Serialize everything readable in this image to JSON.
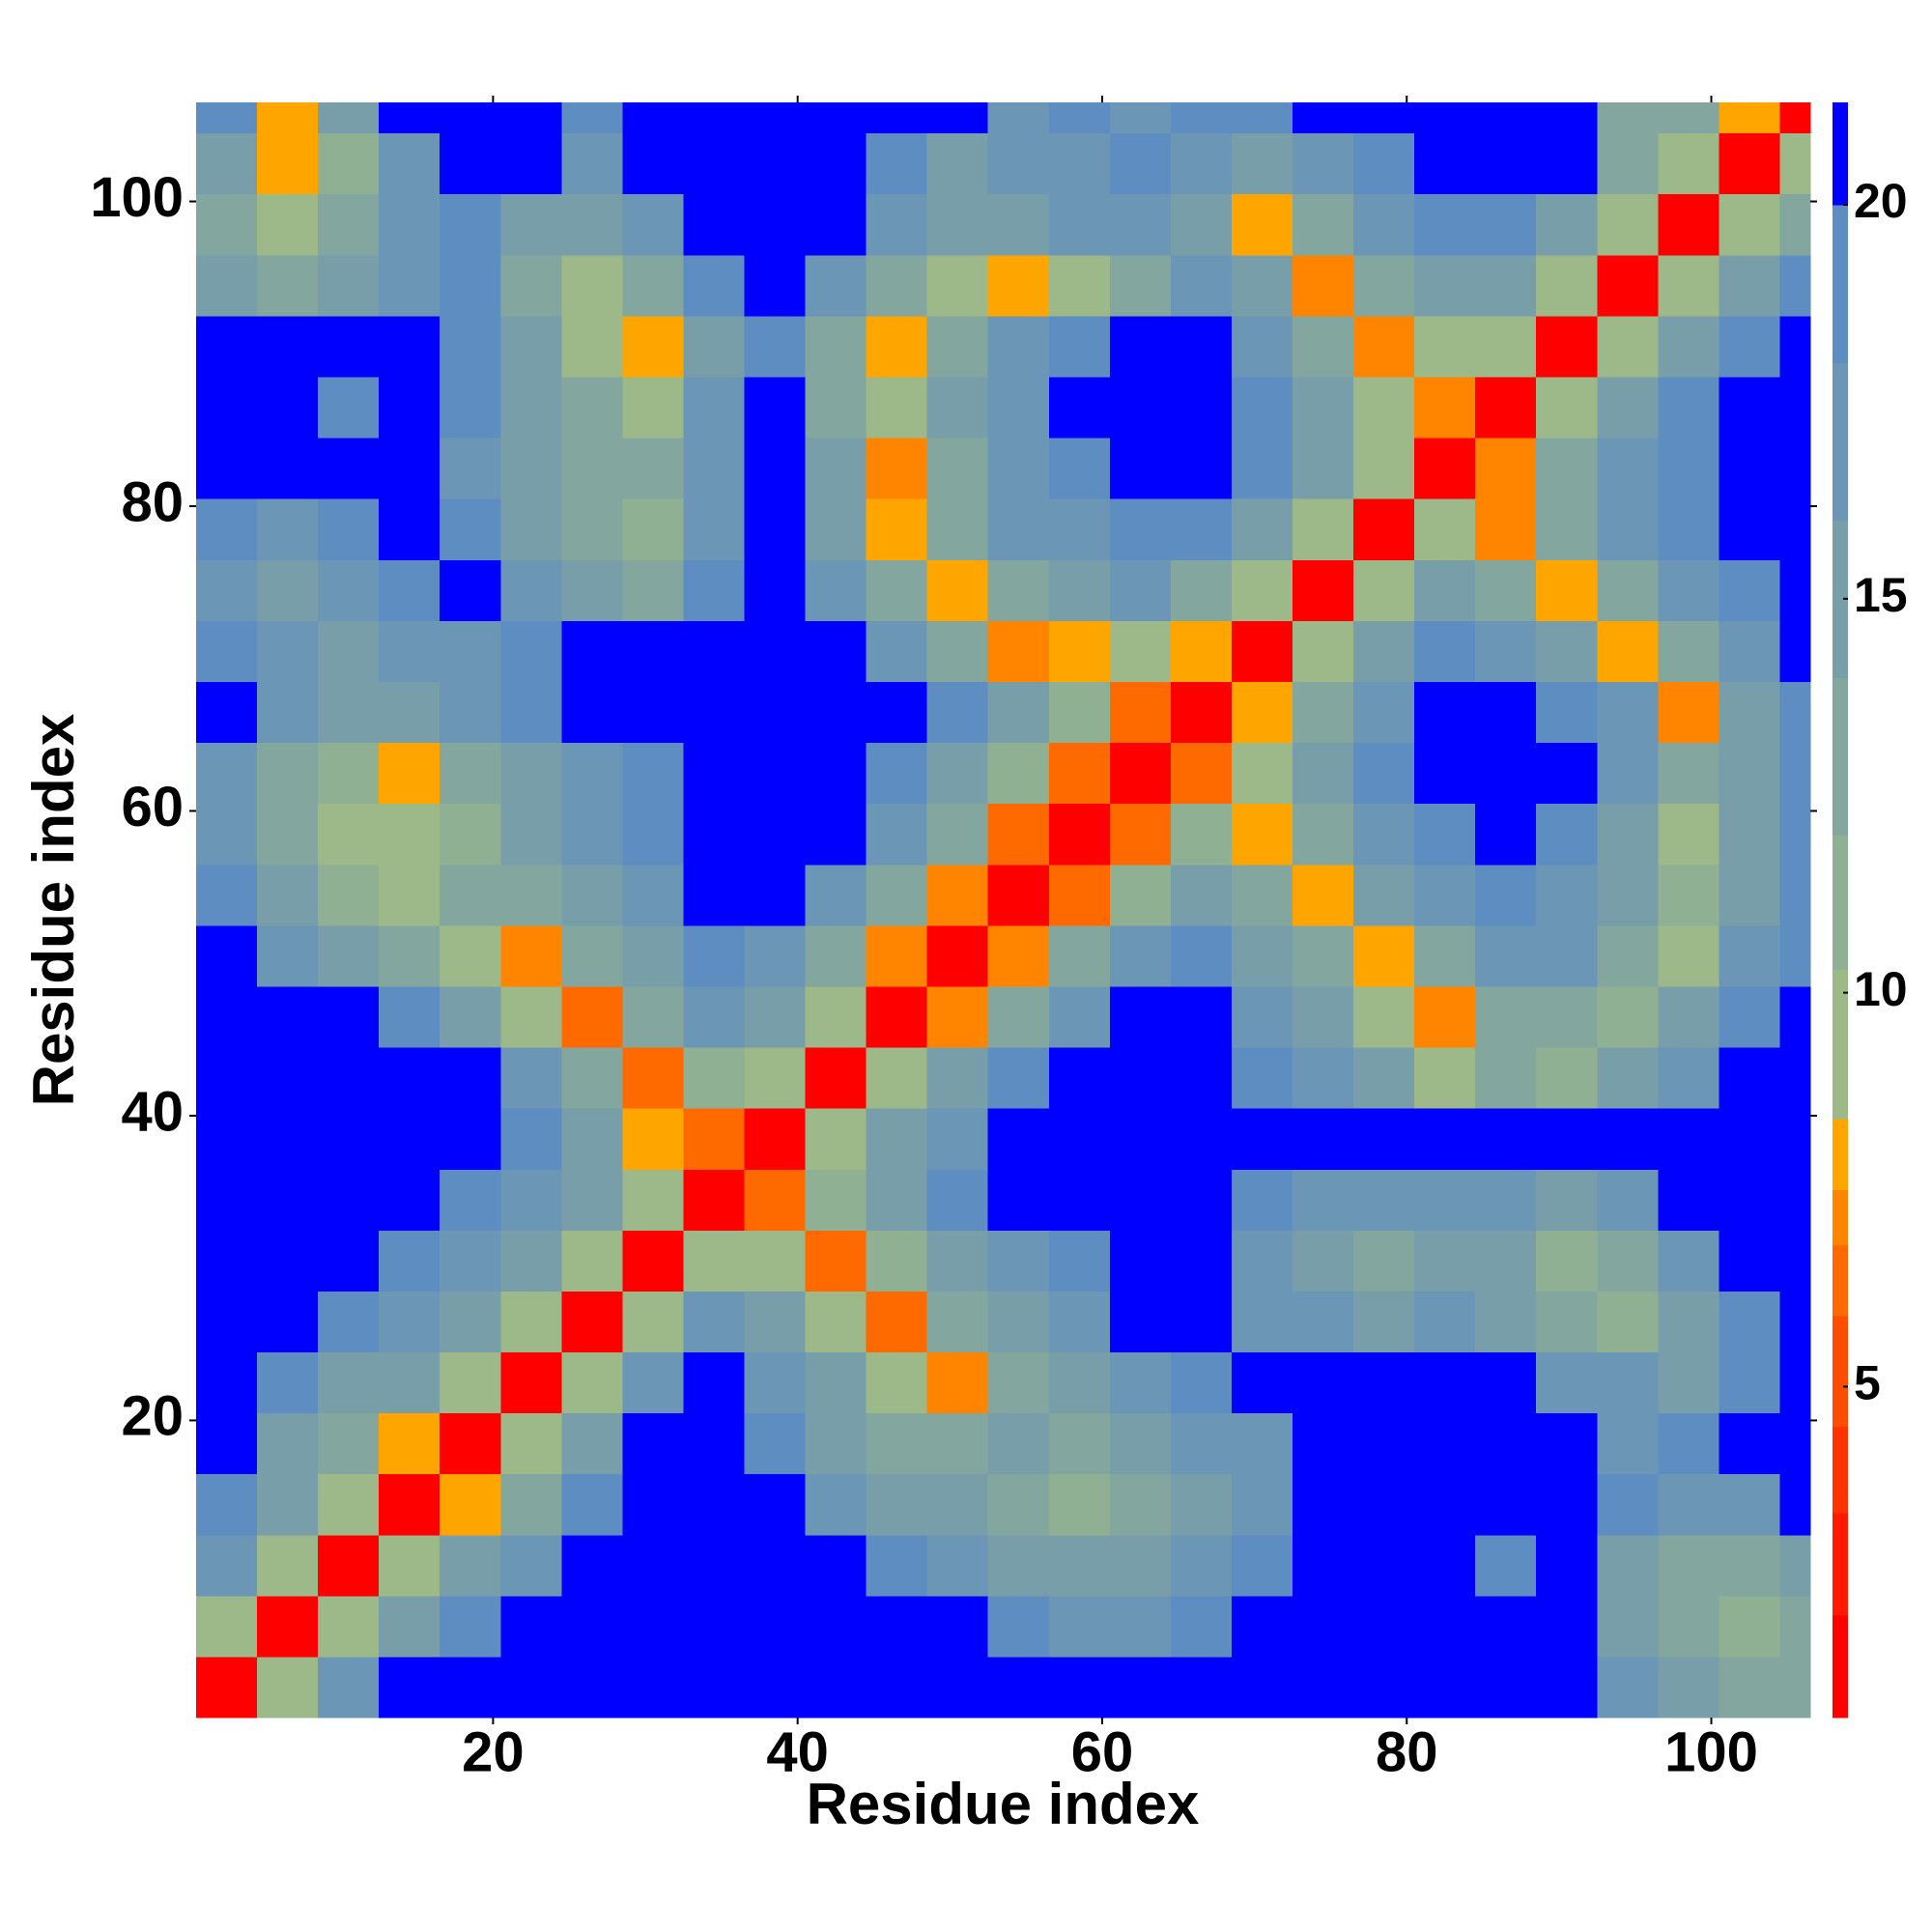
{
  "chart_data": {
    "type": "heatmap",
    "xlabel": "Residue index",
    "ylabel": "Residue index",
    "xlim": [
      0.5,
      106.5
    ],
    "ylim": [
      0.5,
      106.5
    ],
    "xticks": [
      20,
      40,
      60,
      80,
      100
    ],
    "yticks": [
      20,
      40,
      60,
      80,
      100
    ],
    "xbins": [
      0.5,
      4.5,
      8.5,
      12.5,
      16.5,
      20.5,
      24.5,
      28.5,
      32.5,
      36.5,
      40.5,
      44.5,
      48.5,
      52.5,
      56.5,
      60.5,
      64.5,
      68.5,
      72.5,
      76.5,
      80.5,
      84.5,
      88.5,
      92.5,
      96.5,
      100.5,
      104.5,
      106.5
    ],
    "ybins": [
      0.5,
      4.5,
      8.5,
      12.5,
      16.5,
      20.5,
      24.5,
      28.5,
      32.5,
      36.5,
      40.5,
      44.5,
      48.5,
      52.5,
      56.5,
      60.5,
      64.5,
      68.5,
      72.5,
      76.5,
      80.5,
      84.5,
      88.5,
      92.5,
      96.5,
      100.5,
      104.5,
      106.5
    ],
    "z": [
      [
        2,
        10,
        16,
        21,
        21,
        21,
        21,
        21,
        21,
        21,
        21,
        21,
        21,
        21,
        21,
        21,
        21,
        21,
        21,
        21,
        21,
        21,
        21,
        17,
        14,
        12,
        12
      ],
      [
        10,
        2,
        10,
        15,
        18,
        21,
        21,
        21,
        21,
        21,
        21,
        21,
        21,
        18,
        17,
        17,
        18,
        21,
        21,
        21,
        21,
        21,
        21,
        14,
        12,
        11,
        12
      ],
      [
        16,
        10,
        2,
        9,
        14,
        17,
        21,
        21,
        21,
        21,
        21,
        18,
        16,
        15,
        14,
        15,
        16,
        18,
        21,
        21,
        21,
        18,
        21,
        15,
        13,
        12,
        14
      ],
      [
        19,
        15,
        9,
        2,
        8,
        13,
        18,
        21,
        21,
        21,
        16,
        15,
        14,
        12,
        11,
        12,
        15,
        17,
        21,
        21,
        21,
        21,
        21,
        18,
        17,
        17,
        21
      ],
      [
        21,
        14,
        13,
        8,
        2,
        9,
        15,
        21,
        21,
        18,
        15,
        12,
        13,
        14,
        13,
        15,
        16,
        17,
        21,
        21,
        21,
        21,
        21,
        17,
        18,
        21,
        21
      ],
      [
        21,
        18,
        15,
        14,
        9,
        2,
        10,
        16,
        21,
        17,
        14,
        10,
        7,
        13,
        14,
        17,
        18,
        21,
        21,
        21,
        21,
        21,
        17,
        16,
        15,
        18,
        21
      ],
      [
        21,
        21,
        19,
        17,
        15,
        10,
        2,
        10,
        16,
        14,
        10,
        6,
        12,
        14,
        17,
        21,
        21,
        17,
        16,
        15,
        16,
        15,
        13,
        11,
        14,
        18,
        21
      ],
      [
        21,
        21,
        21,
        18,
        17,
        15,
        10,
        2,
        9,
        10,
        6,
        11,
        14,
        16,
        19,
        21,
        21,
        16,
        14,
        12,
        15,
        14,
        11,
        13,
        16,
        21,
        21
      ],
      [
        21,
        21,
        21,
        21,
        19,
        17,
        14,
        9,
        2,
        6,
        11,
        15,
        18,
        21,
        21,
        21,
        21,
        18,
        17,
        16,
        17,
        16,
        15,
        17,
        21,
        21,
        21
      ],
      [
        21,
        21,
        21,
        21,
        21,
        18,
        14,
        8,
        6,
        2,
        9,
        14,
        17,
        21,
        21,
        21,
        21,
        21,
        21,
        21,
        21,
        21,
        21,
        21,
        21,
        21,
        21
      ],
      [
        21,
        21,
        21,
        21,
        21,
        17,
        12,
        6,
        11,
        9,
        2,
        9,
        14,
        18,
        21,
        21,
        21,
        19,
        16,
        14,
        9,
        12,
        11,
        14,
        17,
        21,
        21
      ],
      [
        21,
        21,
        21,
        18,
        15,
        10,
        6,
        13,
        16,
        14,
        9,
        2,
        7,
        13,
        17,
        21,
        21,
        17,
        14,
        10,
        7,
        12,
        13,
        11,
        14,
        18,
        21
      ],
      [
        21,
        17,
        14,
        12,
        10,
        7,
        12,
        15,
        19,
        17,
        13,
        7,
        2,
        7,
        12,
        16,
        19,
        15,
        13,
        8,
        13,
        16,
        17,
        13,
        10,
        16,
        19
      ],
      [
        18,
        14,
        11,
        9,
        12,
        13,
        15,
        17,
        21,
        21,
        17,
        12,
        7,
        2,
        6,
        11,
        15,
        13,
        8,
        14,
        17,
        19,
        17,
        14,
        11,
        15,
        19
      ],
      [
        16,
        12,
        10,
        9,
        11,
        14,
        16,
        18,
        21,
        21,
        21,
        16,
        12,
        6,
        2,
        6,
        11,
        8,
        13,
        16,
        19,
        21,
        18,
        15,
        10,
        14,
        18
      ],
      [
        17,
        13,
        11,
        8,
        12,
        14,
        17,
        19,
        21,
        21,
        21,
        18,
        15,
        11,
        6,
        2,
        6,
        9,
        14,
        18,
        21,
        21,
        21,
        17,
        12,
        15,
        19
      ],
      [
        21,
        17,
        15,
        14,
        16,
        18,
        21,
        21,
        21,
        21,
        21,
        21,
        18,
        15,
        11,
        6,
        2,
        8,
        13,
        17,
        21,
        20,
        18,
        16,
        7,
        14,
        18
      ],
      [
        18,
        16,
        15,
        16,
        17,
        19,
        21,
        21,
        21,
        21,
        21,
        17,
        13,
        7,
        8,
        9,
        8,
        2,
        9,
        14,
        18,
        17,
        14,
        8,
        13,
        17,
        21
      ],
      [
        16,
        15,
        17,
        19,
        21,
        16,
        14,
        13,
        18,
        21,
        17,
        13,
        8,
        12,
        15,
        16,
        13,
        9,
        2,
        9,
        14,
        12,
        8,
        13,
        16,
        19,
        21
      ],
      [
        18,
        17,
        19,
        21,
        18,
        15,
        12,
        11,
        16,
        21,
        15,
        8,
        13,
        16,
        17,
        19,
        18,
        15,
        9,
        2,
        9,
        7,
        12,
        16,
        19,
        21,
        21
      ],
      [
        21,
        21,
        21,
        21,
        17,
        14,
        12,
        12,
        17,
        21,
        14,
        7,
        12,
        16,
        19,
        21,
        21,
        18,
        14,
        9,
        2,
        7,
        12,
        16,
        19,
        21,
        21
      ],
      [
        21,
        21,
        18,
        21,
        18,
        15,
        12,
        10,
        16,
        21,
        13,
        10,
        14,
        17,
        21,
        21,
        21,
        19,
        15,
        10,
        7,
        2,
        9,
        14,
        18,
        21,
        21
      ],
      [
        21,
        21,
        21,
        21,
        19,
        14,
        10,
        8,
        15,
        19,
        13,
        8,
        12,
        16,
        19,
        21,
        21,
        17,
        12,
        7,
        10,
        9,
        2,
        10,
        15,
        19,
        21
      ],
      [
        15,
        12,
        14,
        17,
        18,
        13,
        9,
        13,
        18,
        21,
        16,
        12,
        10,
        8,
        9,
        12,
        16,
        14,
        7,
        12,
        15,
        15,
        10,
        2,
        10,
        15,
        19
      ],
      [
        12,
        10,
        13,
        16,
        18,
        15,
        14,
        17,
        21,
        21,
        21,
        16,
        14,
        15,
        16,
        17,
        15,
        8,
        12,
        16,
        19,
        19,
        15,
        10,
        2,
        9,
        12
      ],
      [
        14,
        8,
        11,
        17,
        21,
        20,
        17,
        21,
        21,
        21,
        21,
        19,
        15,
        17,
        16,
        18,
        17,
        15,
        16,
        19,
        21,
        21,
        21,
        13,
        9,
        2,
        9
      ],
      [
        19,
        8,
        15,
        21,
        21,
        21,
        18,
        21,
        21,
        21,
        21,
        21,
        21,
        17,
        18,
        17,
        19,
        18,
        21,
        21,
        21,
        21,
        21,
        13,
        12,
        8,
        2
      ]
    ],
    "colorbar": {
      "bounds": [
        0.8,
        2.1,
        3.4,
        4.5,
        5.9,
        6.8,
        7.5,
        8.4,
        10.3,
        12,
        14,
        16,
        18,
        20,
        21.3
      ],
      "colors": [
        "#ff0000",
        "#ff1a00",
        "#ff3300",
        "#ff4d00",
        "#ff6a00",
        "#ff8500",
        "#ffa500",
        "#9db98a",
        "#90b093",
        "#83a79e",
        "#789fa9",
        "#6b96b5",
        "#5e8dc2",
        "#0000ff"
      ],
      "ticks": [
        5,
        10,
        15,
        20
      ]
    }
  }
}
